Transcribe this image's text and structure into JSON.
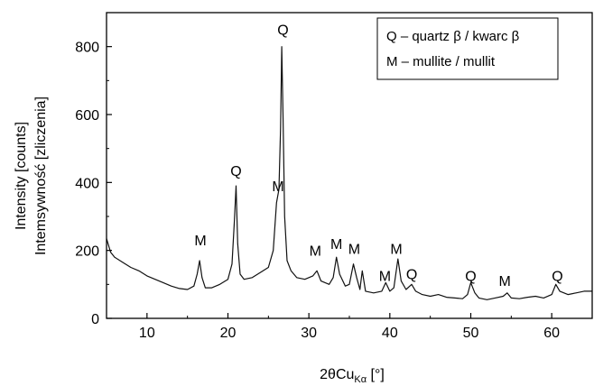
{
  "chart_data": {
    "type": "line",
    "title": "",
    "xlabel": "2θCu",
    "xlabel_subscript": "Kα",
    "xlabel_unit": "[°]",
    "ylabel_lines": [
      "Intemsywność [zliczenia]",
      "Intensity [counts]"
    ],
    "xlim": [
      5,
      65
    ],
    "ylim": [
      0,
      900
    ],
    "xticks": [
      10,
      20,
      30,
      40,
      50,
      60
    ],
    "yticks": [
      0,
      200,
      400,
      600,
      800
    ],
    "grid": false,
    "legend_position": "top-right",
    "legend": [
      "Q – quartz β / kwarc β",
      "M – mullite / mullit"
    ],
    "series": [
      {
        "x": [
          5,
          5.5,
          6,
          7,
          8,
          9,
          10,
          11,
          12,
          13,
          14,
          15,
          15.8,
          16.2,
          16.5,
          16.8,
          17.2,
          18,
          19,
          20,
          20.5,
          20.8,
          21,
          21.2,
          21.5,
          22,
          23,
          24,
          25,
          25.6,
          26,
          26.3,
          26.5,
          26.65,
          26.8,
          27,
          27.3,
          27.8,
          28.5,
          29.5,
          30.5,
          31,
          31.5,
          32.5,
          33,
          33.4,
          33.8,
          34.5,
          35,
          35.5,
          35.9,
          36.3,
          36.6,
          37,
          38,
          39,
          39.5,
          40,
          40.5,
          41,
          41.4,
          42,
          42.7,
          43.2,
          44,
          45,
          46,
          47,
          48,
          49,
          49.6,
          50,
          50.5,
          51,
          52,
          53,
          54,
          54.5,
          55,
          56,
          57,
          58,
          59,
          60,
          60.5,
          61,
          62,
          63,
          64,
          65
        ],
        "values": [
          235,
          195,
          180,
          165,
          150,
          140,
          125,
          115,
          105,
          95,
          88,
          85,
          95,
          130,
          170,
          120,
          90,
          90,
          100,
          115,
          160,
          290,
          390,
          220,
          130,
          115,
          120,
          135,
          150,
          200,
          340,
          380,
          560,
          800,
          600,
          300,
          170,
          140,
          120,
          115,
          125,
          140,
          110,
          100,
          120,
          180,
          130,
          95,
          100,
          160,
          120,
          85,
          140,
          80,
          75,
          80,
          105,
          80,
          90,
          175,
          110,
          85,
          100,
          80,
          70,
          65,
          70,
          62,
          60,
          58,
          70,
          105,
          75,
          60,
          55,
          60,
          65,
          75,
          60,
          58,
          62,
          65,
          60,
          70,
          100,
          80,
          70,
          75,
          80,
          80
        ]
      }
    ],
    "annotations": [
      {
        "label": "M",
        "x": 16.6,
        "y": 215
      },
      {
        "label": "Q",
        "x": 21.0,
        "y": 420
      },
      {
        "label": "M",
        "x": 26.2,
        "y": 375
      },
      {
        "label": "Q",
        "x": 26.8,
        "y": 835
      },
      {
        "label": "M",
        "x": 30.8,
        "y": 185
      },
      {
        "label": "M",
        "x": 33.4,
        "y": 205
      },
      {
        "label": "M",
        "x": 35.6,
        "y": 190
      },
      {
        "label": "M",
        "x": 39.4,
        "y": 110
      },
      {
        "label": "M",
        "x": 40.8,
        "y": 190
      },
      {
        "label": "Q",
        "x": 42.7,
        "y": 115
      },
      {
        "label": "Q",
        "x": 50.0,
        "y": 110
      },
      {
        "label": "M",
        "x": 54.2,
        "y": 95
      },
      {
        "label": "Q",
        "x": 60.7,
        "y": 110
      }
    ]
  }
}
